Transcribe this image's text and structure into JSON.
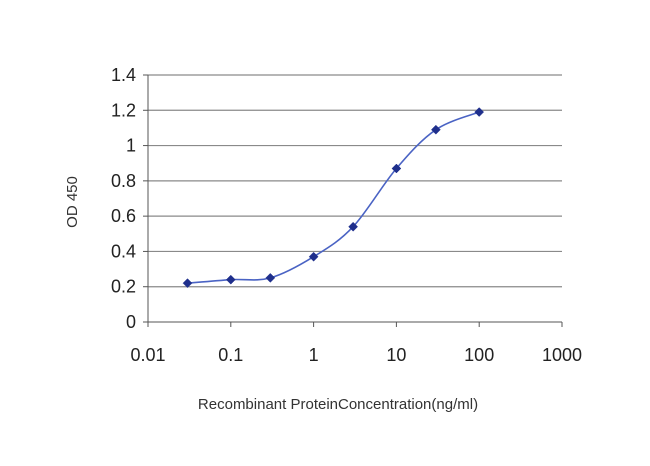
{
  "chart_data": {
    "type": "line",
    "xlabel": "Recombinant ProteinConcentration(ng/ml)",
    "ylabel": "OD 450",
    "xscale": "log",
    "xlim": [
      0.01,
      1000
    ],
    "ylim": [
      0,
      1.4
    ],
    "x_ticks": [
      "0.01",
      "0.1",
      "1",
      "10",
      "100",
      "1000"
    ],
    "y_ticks": [
      "0",
      "0.2",
      "0.4",
      "0.6",
      "0.8",
      "1",
      "1.2",
      "1.4"
    ],
    "grid": true,
    "legend": "none",
    "series": [
      {
        "color": "#4a63c4",
        "marker_color": "#1f2f8c",
        "points": [
          {
            "x": 0.03,
            "y": 0.22
          },
          {
            "x": 0.1,
            "y": 0.24
          },
          {
            "x": 0.3,
            "y": 0.25
          },
          {
            "x": 1,
            "y": 0.37
          },
          {
            "x": 3,
            "y": 0.54
          },
          {
            "x": 10,
            "y": 0.87
          },
          {
            "x": 30,
            "y": 1.09
          },
          {
            "x": 100,
            "y": 1.19
          }
        ]
      }
    ]
  }
}
